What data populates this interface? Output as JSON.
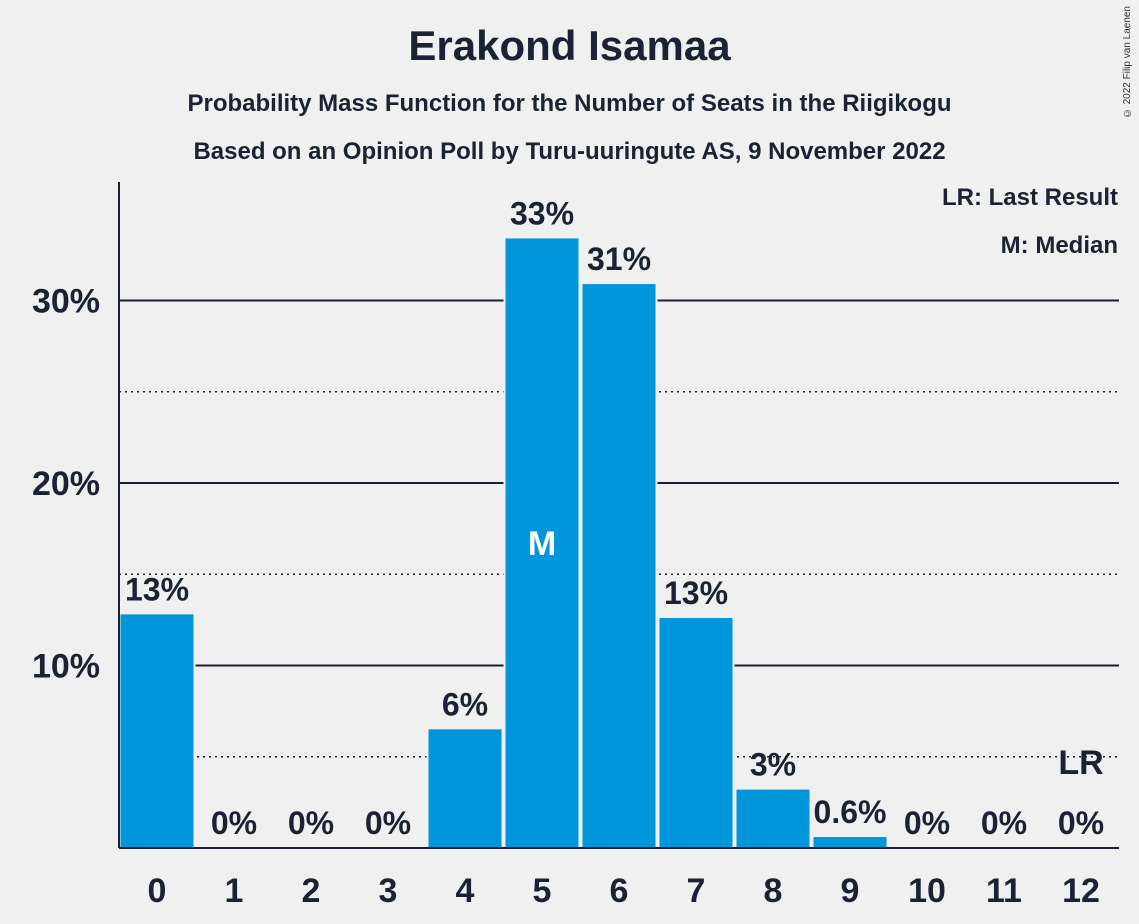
{
  "title": "Erakond Isamaa",
  "subtitle1": "Probability Mass Function for the Number of Seats in the Riigikogu",
  "subtitle2": "Based on an Opinion Poll by Turu-uuringute AS, 9 November 2022",
  "copyright": "© 2022 Filip van Laenen",
  "legend": {
    "last_result": "LR: Last Result",
    "median": "M: Median"
  },
  "colors": {
    "bar": "#0096db",
    "text": "#1a2233",
    "background": "#f0f0f0"
  },
  "chart_data": {
    "type": "bar",
    "categories": [
      "0",
      "1",
      "2",
      "3",
      "4",
      "5",
      "6",
      "7",
      "8",
      "9",
      "10",
      "11",
      "12"
    ],
    "values": [
      12.8,
      0,
      0,
      0,
      6.5,
      33.4,
      30.9,
      12.6,
      3.2,
      0.6,
      0,
      0,
      0
    ],
    "labels": [
      "13%",
      "0%",
      "0%",
      "0%",
      "6%",
      "33%",
      "31%",
      "13%",
      "3%",
      "0.6%",
      "0%",
      "0%",
      "0%"
    ],
    "ylim": [
      0,
      36
    ],
    "yticks": [
      10,
      20,
      30
    ],
    "ytick_labels": [
      "10%",
      "20%",
      "30%"
    ],
    "minor_gridlines": [
      5,
      15,
      25
    ],
    "median_index": 5,
    "median_marker": "M",
    "last_result_index": 12,
    "last_result_marker": "LR"
  }
}
